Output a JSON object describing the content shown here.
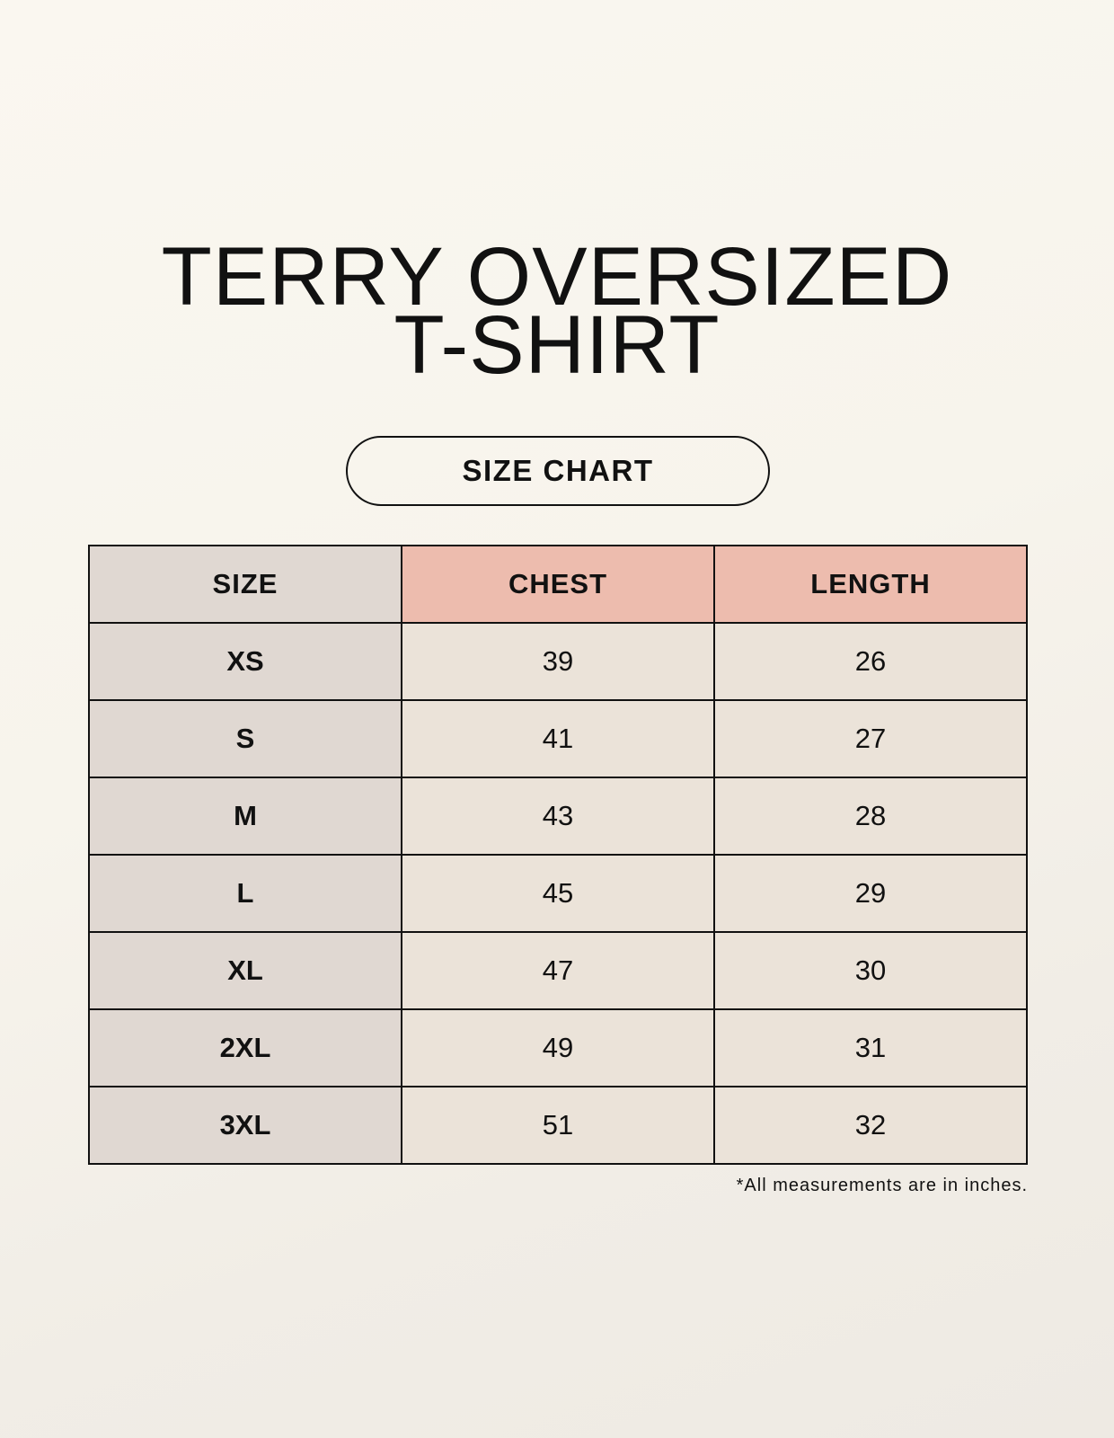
{
  "title": {
    "line1": "TERRY OVERSIZED",
    "line2": "T-SHIRT"
  },
  "subtitle": "SIZE CHART",
  "table": {
    "headers": [
      "SIZE",
      "CHEST",
      "LENGTH"
    ],
    "rows": [
      [
        "XS",
        "39",
        "26"
      ],
      [
        "S",
        "41",
        "27"
      ],
      [
        "M",
        "43",
        "28"
      ],
      [
        "L",
        "45",
        "29"
      ],
      [
        "XL",
        "47",
        "30"
      ],
      [
        "2XL",
        "49",
        "31"
      ],
      [
        "3XL",
        "51",
        "32"
      ]
    ]
  },
  "footnote": "*All measurements are in inches.",
  "colors": {
    "size_column": "#e0d8d2",
    "header_accent": "#edbcae",
    "cell": "#ebe3d9",
    "background": "#f8f5ee"
  }
}
